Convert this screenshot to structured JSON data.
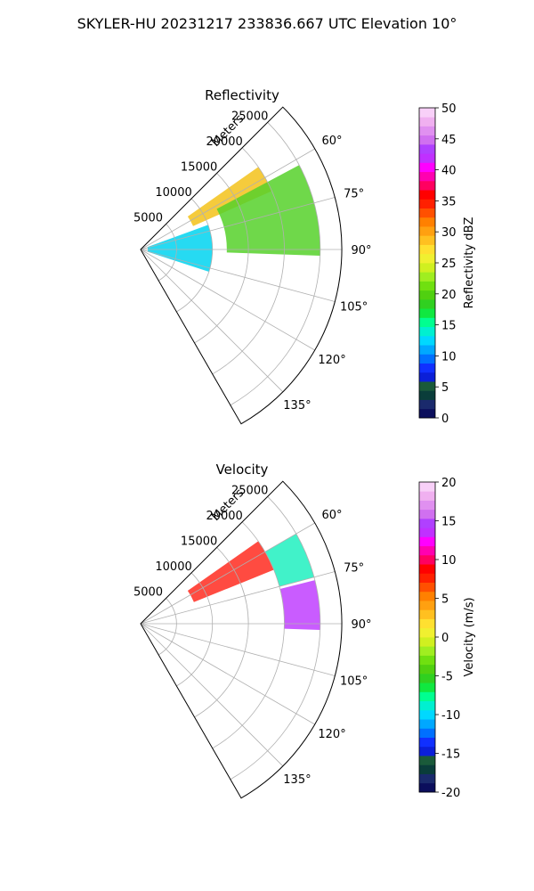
{
  "suptitle": "SKYLER-HU  20231217  233836.667 UTC Elevation 10°",
  "chart_data": [
    {
      "type": "polar-sector",
      "title": "Reflectivity",
      "range_label": "Meters",
      "range_ticks": [
        "5000",
        "10000",
        "15000",
        "20000",
        "25000"
      ],
      "range_max": 28000,
      "azimuth_range_deg": [
        45,
        150
      ],
      "azimuth_ticks": [
        "60°",
        "75°",
        "90°",
        "105°",
        "120°",
        "135°"
      ],
      "colorbar": {
        "label": "Reflectivity dBZ",
        "min": 0,
        "max": 50,
        "ticks": [
          "0",
          "5",
          "10",
          "15",
          "20",
          "25",
          "30",
          "35",
          "40",
          "45",
          "50"
        ],
        "colors": [
          "#0b0e5c",
          "#1a2a6c",
          "#0a3d3a",
          "#1a5a3a",
          "#0b1fd8",
          "#1030ff",
          "#0070ff",
          "#00a8ff",
          "#00d8ff",
          "#00f0d0",
          "#00ff90",
          "#10e840",
          "#30d020",
          "#50d010",
          "#70e010",
          "#a0ee20",
          "#d0f020",
          "#f0f030",
          "#ffe030",
          "#ffc020",
          "#ffa010",
          "#ff8000",
          "#ff5000",
          "#ff2000",
          "#ff0000",
          "#ff0060",
          "#ff00b0",
          "#ff00ff",
          "#c030ff",
          "#b040ff",
          "#d070f0",
          "#e090f0",
          "#f0b0f0",
          "#f8d0f8"
        ]
      },
      "echo_summary": [
        {
          "azimuth": [
            55,
            66
          ],
          "range": [
            8000,
            20000
          ],
          "value": "25-35 dBZ"
        },
        {
          "azimuth": [
            62,
            92
          ],
          "range": [
            12000,
            25000
          ],
          "value": "15-22 dBZ"
        },
        {
          "azimuth": [
            70,
            108
          ],
          "range": [
            1000,
            10000
          ],
          "value": "5-15 dBZ"
        }
      ]
    },
    {
      "type": "polar-sector",
      "title": "Velocity",
      "range_label": "Meters",
      "range_ticks": [
        "5000",
        "10000",
        "15000",
        "20000",
        "25000"
      ],
      "range_max": 28000,
      "azimuth_range_deg": [
        45,
        150
      ],
      "azimuth_ticks": [
        "60°",
        "75°",
        "90°",
        "105°",
        "120°",
        "135°"
      ],
      "colorbar": {
        "label": "Velocity (m/s)",
        "min": -20,
        "max": 20,
        "ticks": [
          "-20",
          "-15",
          "-10",
          "-5",
          "0",
          "5",
          "10",
          "15",
          "20"
        ],
        "colors": [
          "#0b0e5c",
          "#1a2a6c",
          "#0a3d3a",
          "#1a5a3a",
          "#0b1fd8",
          "#1030ff",
          "#0070ff",
          "#00a8ff",
          "#00d8ff",
          "#00f0d0",
          "#00ff90",
          "#10e840",
          "#30d020",
          "#50d010",
          "#70e010",
          "#a0ee20",
          "#d0f020",
          "#f0f030",
          "#ffe030",
          "#ffc020",
          "#ffa010",
          "#ff8000",
          "#ff5000",
          "#ff2000",
          "#ff0000",
          "#ff0060",
          "#ff00b0",
          "#ff00ff",
          "#c030ff",
          "#b040ff",
          "#d070f0",
          "#e090f0",
          "#f0b0f0",
          "#f8d0f8"
        ]
      },
      "echo_summary": [
        {
          "azimuth": [
            55,
            68
          ],
          "range": [
            8000,
            20000
          ],
          "value": "5-12 m/s"
        },
        {
          "azimuth": [
            60,
            75
          ],
          "range": [
            20000,
            25000
          ],
          "value": "-12 m/s"
        },
        {
          "azimuth": [
            76,
            92
          ],
          "range": [
            20000,
            25000
          ],
          "value": "8-16 m/s"
        }
      ]
    }
  ]
}
